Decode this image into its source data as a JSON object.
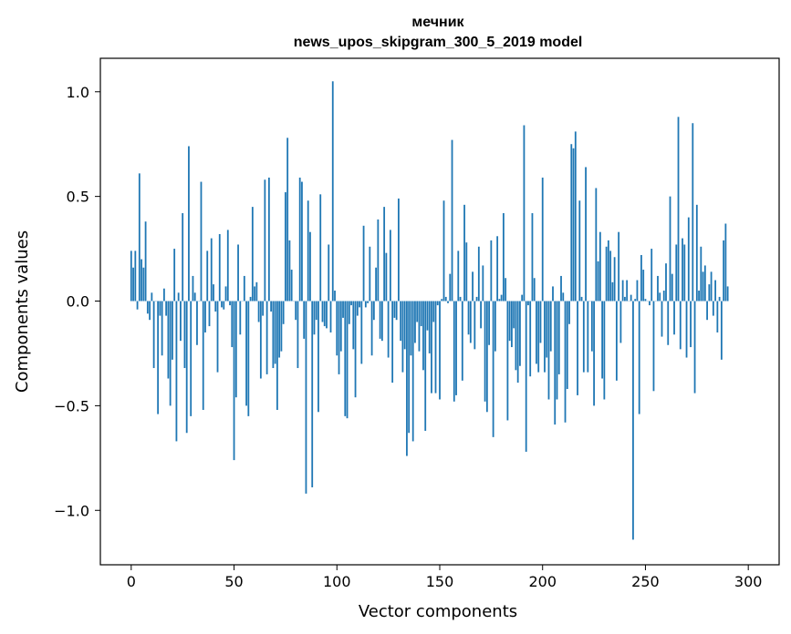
{
  "chart_data": {
    "type": "bar",
    "title_line1": "мечник",
    "title_line2": "news_upos_skipgram_300_5_2019 model",
    "xlabel": "Vector components",
    "ylabel": "Components values",
    "xlim": [
      -15,
      315
    ],
    "ylim": [
      -1.26,
      1.16
    ],
    "xticks": [
      0,
      50,
      100,
      150,
      200,
      250,
      300
    ],
    "xtick_labels": [
      "0",
      "50",
      "100",
      "150",
      "200",
      "250",
      "300"
    ],
    "yticks": [
      1.0,
      0.5,
      0.0,
      -0.5,
      -1.0
    ],
    "ytick_labels": [
      "1.0",
      "0.5",
      "0.0",
      "−0.5",
      "−1.0"
    ],
    "bar_color": "#1f77b4",
    "values": [
      0.24,
      0.16,
      0.24,
      -0.04,
      0.61,
      0.2,
      0.16,
      0.38,
      -0.06,
      -0.09,
      0.04,
      -0.32,
      0.0,
      -0.54,
      -0.07,
      -0.26,
      0.06,
      -0.07,
      -0.37,
      -0.5,
      -0.28,
      0.25,
      -0.67,
      0.04,
      -0.19,
      0.42,
      -0.32,
      -0.63,
      0.74,
      -0.55,
      0.12,
      0.04,
      -0.21,
      0.0,
      0.57,
      -0.52,
      -0.15,
      0.24,
      -0.12,
      0.3,
      0.08,
      -0.05,
      -0.34,
      0.32,
      -0.03,
      -0.04,
      0.07,
      0.34,
      -0.02,
      -0.22,
      -0.76,
      -0.46,
      0.27,
      -0.16,
      0.0,
      0.12,
      -0.5,
      -0.55,
      0.02,
      0.45,
      0.07,
      0.09,
      -0.1,
      -0.37,
      -0.07,
      0.58,
      -0.35,
      0.59,
      -0.05,
      -0.32,
      -0.3,
      -0.52,
      -0.27,
      -0.24,
      -0.11,
      0.52,
      0.78,
      0.29,
      0.15,
      0.0,
      -0.09,
      -0.32,
      0.59,
      0.57,
      -0.18,
      -0.92,
      0.48,
      0.33,
      -0.89,
      -0.16,
      -0.09,
      -0.53,
      0.51,
      -0.1,
      -0.12,
      -0.13,
      0.27,
      -0.15,
      1.05,
      0.05,
      -0.26,
      -0.35,
      -0.24,
      -0.08,
      -0.55,
      -0.56,
      -0.11,
      -0.02,
      -0.23,
      -0.46,
      -0.07,
      -0.03,
      -0.3,
      0.36,
      -0.03,
      -0.01,
      0.26,
      -0.26,
      -0.09,
      0.16,
      0.39,
      -0.18,
      -0.19,
      0.45,
      0.23,
      -0.27,
      0.34,
      -0.39,
      -0.08,
      -0.09,
      0.49,
      -0.19,
      -0.34,
      -0.23,
      -0.74,
      -0.63,
      -0.26,
      -0.67,
      -0.2,
      -0.1,
      -0.24,
      -0.12,
      -0.33,
      -0.62,
      -0.14,
      -0.25,
      -0.44,
      -0.1,
      -0.44,
      -0.02,
      -0.47,
      0.01,
      0.48,
      0.02,
      -0.01,
      0.13,
      0.77,
      -0.48,
      -0.45,
      0.24,
      0.02,
      -0.38,
      0.46,
      0.28,
      -0.16,
      -0.2,
      0.14,
      -0.23,
      0.02,
      0.26,
      -0.13,
      0.17,
      -0.48,
      -0.53,
      -0.21,
      0.29,
      -0.65,
      -0.24,
      0.31,
      0.01,
      0.03,
      0.42,
      0.11,
      -0.57,
      -0.19,
      -0.22,
      -0.13,
      -0.33,
      -0.39,
      -0.31,
      0.03,
      0.84,
      -0.72,
      -0.02,
      -0.36,
      0.42,
      0.11,
      -0.3,
      -0.34,
      -0.2,
      0.59,
      -0.34,
      -0.27,
      -0.47,
      -0.24,
      0.07,
      -0.59,
      -0.47,
      -0.35,
      0.12,
      0.04,
      -0.58,
      -0.42,
      -0.11,
      0.75,
      0.73,
      0.81,
      -0.45,
      0.48,
      0.02,
      -0.34,
      0.64,
      -0.34,
      0.0,
      -0.24,
      -0.5,
      0.54,
      0.19,
      0.33,
      -0.37,
      -0.47,
      0.26,
      0.29,
      0.24,
      0.09,
      0.21,
      -0.38,
      0.33,
      -0.2,
      0.1,
      0.02,
      0.1,
      0.0,
      0.03,
      -1.14,
      0.01,
      0.1,
      -0.54,
      0.22,
      0.15,
      0.01,
      0.0,
      -0.02,
      0.25,
      -0.43,
      0.0,
      0.12,
      0.04,
      -0.17,
      0.05,
      0.18,
      -0.21,
      0.5,
      0.13,
      -0.16,
      0.27,
      0.88,
      -0.23,
      0.3,
      0.27,
      -0.27,
      0.4,
      -0.22,
      0.85,
      -0.44,
      0.46,
      0.05,
      0.26,
      0.14,
      0.17,
      -0.09,
      0.08,
      0.14,
      -0.07,
      0.1,
      -0.15,
      0.02,
      -0.28,
      0.29,
      0.37,
      0.07
    ]
  }
}
